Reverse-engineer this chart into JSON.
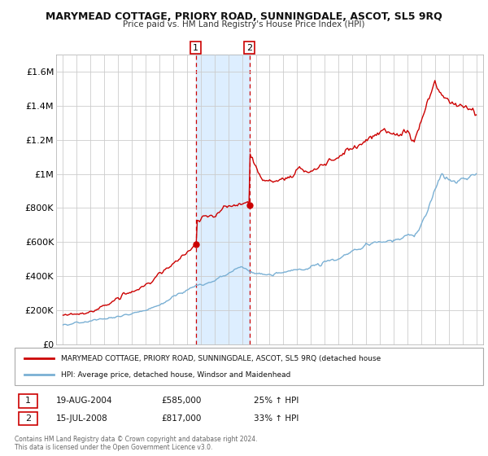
{
  "title": "MARYMEAD COTTAGE, PRIORY ROAD, SUNNINGDALE, ASCOT, SL5 9RQ",
  "subtitle": "Price paid vs. HM Land Registry's House Price Index (HPI)",
  "legend_line1": "MARYMEAD COTTAGE, PRIORY ROAD, SUNNINGDALE, ASCOT, SL5 9RQ (detached house",
  "legend_line2": "HPI: Average price, detached house, Windsor and Maidenhead",
  "annotation1_date": "19-AUG-2004",
  "annotation1_price": "£585,000",
  "annotation1_hpi": "25% ↑ HPI",
  "annotation2_date": "15-JUL-2008",
  "annotation2_price": "£817,000",
  "annotation2_hpi": "33% ↑ HPI",
  "footer": "Contains HM Land Registry data © Crown copyright and database right 2024.\nThis data is licensed under the Open Government Licence v3.0.",
  "sale1_year": 2004.63,
  "sale1_price": 585000,
  "sale2_year": 2008.54,
  "sale2_price": 817000,
  "red_color": "#cc0000",
  "blue_color": "#7ab0d4",
  "highlight_color": "#ddeeff",
  "background_color": "#ffffff",
  "grid_color": "#cccccc",
  "ylim": [
    0,
    1700000
  ],
  "yticks": [
    0,
    200000,
    400000,
    600000,
    800000,
    1000000,
    1200000,
    1400000,
    1600000
  ],
  "ytick_labels": [
    "£0",
    "£200K",
    "£400K",
    "£600K",
    "£800K",
    "£1M",
    "£1.2M",
    "£1.4M",
    "£1.6M"
  ],
  "xlim_start": 1994.5,
  "xlim_end": 2025.5
}
